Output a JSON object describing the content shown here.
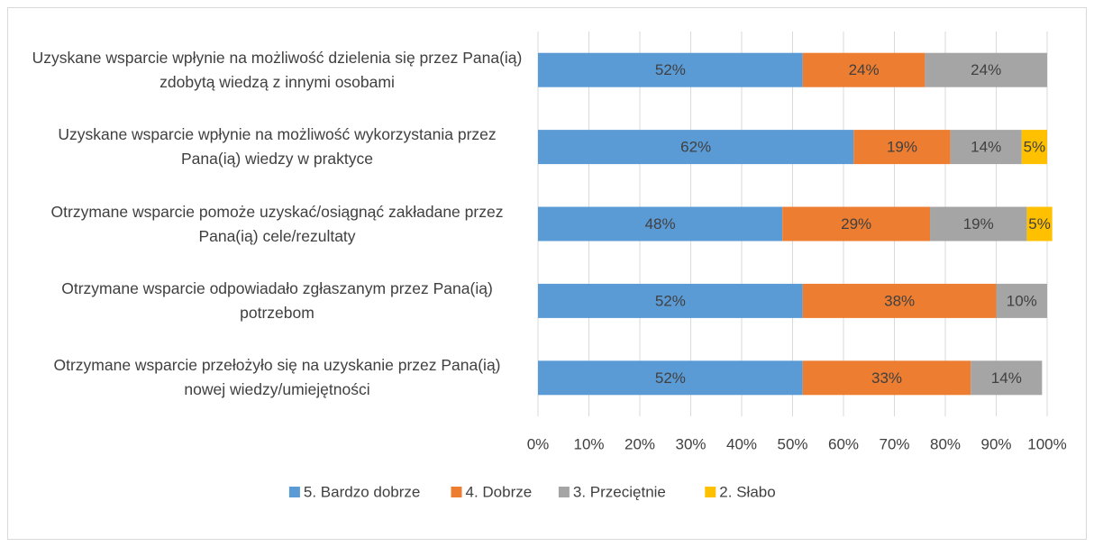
{
  "chart_data": {
    "type": "stacked_bar_horizontal",
    "categories": [
      "Uzyskane wsparcie wpłynie na możliwość dzielenia się przez Pana(ią) zdobytą wiedzą z innymi osobami",
      "Uzyskane wsparcie wpłynie na możliwość wykorzystania przez Pana(ią) wiedzy w praktyce",
      "Otrzymane wsparcie pomoże uzyskać/osiągnąć zakładane przez Pana(ią) cele/rezultaty",
      "Otrzymane wsparcie odpowiadało zgłaszanym przez Pana(ią) potrzebom",
      "Otrzymane wsparcie przełożyło się na uzyskanie przez Pana(ią) nowej wiedzy/umiejętności"
    ],
    "series": [
      {
        "name": "5. Bardzo dobrze",
        "color": "#5b9bd5",
        "values": [
          52,
          62,
          48,
          52,
          52
        ],
        "value_labels": [
          "52%",
          "62%",
          "48%",
          "52%",
          "52%"
        ]
      },
      {
        "name": "4. Dobrze",
        "color": "#ed7d31",
        "values": [
          24,
          19,
          29,
          38,
          33
        ],
        "value_labels": [
          "24%",
          "19%",
          "29%",
          "38%",
          "33%"
        ]
      },
      {
        "name": "3. Przeciętnie",
        "color": "#a5a5a5",
        "values": [
          24,
          14,
          19,
          10,
          14
        ],
        "value_labels": [
          "24%",
          "14%",
          "19%",
          "10%",
          "14%"
        ]
      },
      {
        "name": "2. Słabo",
        "color": "#ffc000",
        "values": [
          null,
          5,
          5,
          null,
          null
        ],
        "value_labels": [
          null,
          "5%",
          "5%",
          null,
          null
        ]
      }
    ],
    "xlim": [
      0,
      100
    ],
    "xticks": [
      {
        "value": 0,
        "label": "0%"
      },
      {
        "value": 10,
        "label": "10%"
      },
      {
        "value": 20,
        "label": "20%"
      },
      {
        "value": 30,
        "label": "30%"
      },
      {
        "value": 40,
        "label": "40%"
      },
      {
        "value": 50,
        "label": "50%"
      },
      {
        "value": 60,
        "label": "60%"
      },
      {
        "value": 70,
        "label": "70%"
      },
      {
        "value": 80,
        "label": "80%"
      },
      {
        "value": 90,
        "label": "90%"
      },
      {
        "value": 100,
        "label": "100%"
      }
    ],
    "grid": true,
    "legend": "bottom"
  }
}
